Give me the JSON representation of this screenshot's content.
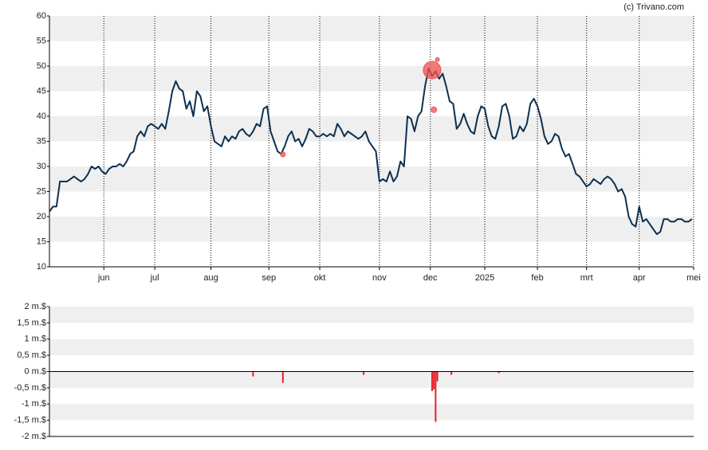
{
  "chart_data": [
    {
      "type": "line",
      "credit": "(c) Trivano.com",
      "x": [
        0,
        2,
        4,
        6,
        8,
        10,
        12,
        14,
        16,
        18,
        20,
        22,
        24,
        26,
        28,
        30,
        32,
        34,
        36,
        38,
        40,
        42,
        44,
        46,
        48,
        50,
        52,
        54,
        56,
        58,
        60,
        62,
        64,
        66,
        68,
        70,
        72,
        74,
        76,
        78,
        80,
        82,
        84,
        86,
        88,
        90,
        92,
        94,
        96,
        98,
        100,
        102,
        104,
        106,
        108,
        110,
        112,
        114,
        116,
        118,
        120,
        122,
        124,
        126,
        128,
        130,
        132,
        134,
        136,
        138,
        140,
        142,
        144,
        146,
        148,
        150,
        152,
        154,
        156,
        158,
        160,
        162,
        164,
        166,
        168,
        170,
        172,
        174,
        176,
        178,
        180,
        182,
        184,
        186,
        188,
        190,
        192,
        194,
        196,
        198,
        200,
        202,
        204,
        206,
        208,
        210,
        212,
        214,
        216,
        218,
        220,
        222,
        224,
        226,
        228,
        230,
        232,
        234,
        236,
        238,
        240,
        242,
        244,
        246,
        248,
        250,
        252,
        254,
        256,
        258,
        260,
        262,
        264,
        266,
        268,
        270,
        272,
        274,
        276,
        278,
        280,
        282,
        284,
        286,
        288,
        290,
        292,
        294,
        296,
        298,
        300,
        302,
        304,
        306,
        308,
        310,
        312,
        314,
        316,
        318,
        320,
        322,
        324,
        326,
        328,
        330,
        332,
        334,
        336,
        338,
        340,
        342,
        344,
        346,
        348,
        350,
        352,
        354,
        356,
        358,
        360,
        362,
        364,
        366
      ],
      "series": [
        {
          "color": "#0d3050",
          "values": [
            21,
            22,
            22,
            27,
            27,
            27,
            27.5,
            28,
            27.5,
            27,
            27.5,
            28.5,
            30,
            29.5,
            30,
            29,
            28.5,
            29.5,
            30,
            30,
            30.5,
            30,
            31,
            32.5,
            33,
            36,
            37,
            36,
            38,
            38.5,
            38,
            37.5,
            38.5,
            37.5,
            41,
            45,
            47,
            45.5,
            45,
            41.5,
            43,
            40,
            45,
            44,
            41,
            42,
            38,
            35,
            34.5,
            34,
            36,
            35,
            36,
            35.5,
            37,
            37.5,
            36.5,
            36,
            37,
            38.5,
            38,
            41.5,
            42,
            37,
            35,
            33,
            32.5,
            34,
            36,
            37,
            35,
            35.5,
            34,
            35.5,
            37.5,
            37,
            36,
            36,
            36.5,
            36,
            36.5,
            36,
            38.5,
            37.5,
            36,
            37,
            36.5,
            36,
            35.5,
            36,
            37,
            35,
            34,
            33,
            27,
            27.5,
            27,
            29,
            27,
            28,
            31,
            30,
            40,
            39.5,
            37,
            40,
            41,
            46,
            49.5,
            48,
            49,
            47.5,
            48.5,
            46,
            43,
            42.5,
            37.5,
            38.5,
            40.5,
            38.5,
            37,
            36.5,
            40,
            42,
            41.5,
            38,
            36,
            35.5,
            38,
            42,
            42.5,
            40,
            35.5,
            36,
            38,
            37,
            38.5,
            42.5,
            43.5,
            42,
            39.5,
            36,
            34.5,
            35,
            36.5,
            36,
            33.5,
            32,
            32.5,
            30.5,
            28.5,
            28,
            27,
            26,
            26.5,
            27.5,
            27,
            26.5,
            27.5,
            28,
            27.5,
            26.5,
            25,
            25.5,
            24,
            20,
            18.5,
            18,
            22,
            19,
            19.5,
            18.5,
            17.5,
            16.5,
            17,
            19.5,
            19.5,
            19,
            19,
            19.5,
            19.5,
            19,
            19,
            19.5
          ]
        }
      ],
      "markers": {
        "color": "#f05050",
        "x": [
          218,
          221,
          219,
          133
        ],
        "values": [
          49.2,
          51.3,
          41.3,
          32.4
        ],
        "sizes": [
          11,
          2.5,
          3.5,
          3
        ]
      },
      "xlim": [
        0,
        367
      ],
      "xticks": [
        {
          "value": 31,
          "label": "jun"
        },
        {
          "value": 60,
          "label": "jul"
        },
        {
          "value": 92,
          "label": "aug"
        },
        {
          "value": 125,
          "label": "sep"
        },
        {
          "value": 154,
          "label": "okt"
        },
        {
          "value": 188,
          "label": "nov"
        },
        {
          "value": 217,
          "label": "dec"
        },
        {
          "value": 248,
          "label": "2025"
        },
        {
          "value": 278,
          "label": "feb"
        },
        {
          "value": 306,
          "label": "mrt"
        },
        {
          "value": 336,
          "label": "apr"
        },
        {
          "value": 367,
          "label": "mei"
        }
      ],
      "ylim": [
        10,
        60
      ],
      "yticks": [
        10,
        15,
        20,
        25,
        30,
        35,
        40,
        45,
        50,
        55,
        60
      ],
      "grid": true
    },
    {
      "type": "bar",
      "color": "#e8202a",
      "x": [
        116,
        133,
        179,
        218,
        219,
        220,
        221,
        229,
        256
      ],
      "values": [
        -0.15,
        -0.35,
        -0.1,
        -0.6,
        -0.55,
        -1.55,
        -0.3,
        -0.1,
        -0.05
      ],
      "xlim": [
        0,
        367
      ],
      "ylim": [
        -2,
        2
      ],
      "yticks": [
        {
          "value": -2,
          "label": "-2 m.$"
        },
        {
          "value": -1.5,
          "label": "-1,5 m.$"
        },
        {
          "value": -1,
          "label": "-1 m.$"
        },
        {
          "value": -0.5,
          "label": "-0,5 m.$"
        },
        {
          "value": 0,
          "label": "0 m.$"
        },
        {
          "value": 0.5,
          "label": "0,5 m.$"
        },
        {
          "value": 1,
          "label": "1 m.$"
        },
        {
          "value": 1.5,
          "label": "1,5 m.$"
        },
        {
          "value": 2,
          "label": "2 m.$"
        }
      ],
      "grid": true
    }
  ]
}
